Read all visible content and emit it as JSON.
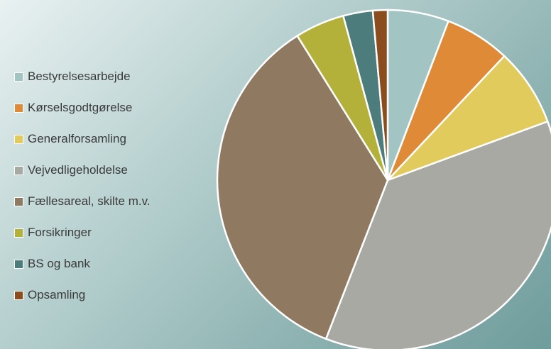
{
  "chart_data": {
    "type": "pie",
    "title": "",
    "categories": [
      "Bestyrelsesarbejde",
      "Kørselsgodtgørelse",
      "Generalforsamling",
      "Vejvedligeholdelse",
      "Fællesareal, skilte m.v.",
      "Forsikringer",
      "BS og bank",
      "Opsamling"
    ],
    "values": [
      5.8,
      6.2,
      7.4,
      36.5,
      35.2,
      4.7,
      2.8,
      1.4
    ],
    "colors": [
      "#a2c4c3",
      "#df8a36",
      "#e1cb5c",
      "#a9a9a4",
      "#8f7a61",
      "#b3b13a",
      "#4d7c7d",
      "#8b4d1d"
    ],
    "legend_position": "left"
  }
}
